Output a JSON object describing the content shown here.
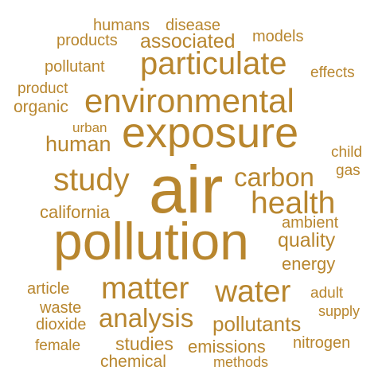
{
  "color": "#b8862e",
  "words": {
    "humans": "humans",
    "disease": "disease",
    "products": "products",
    "associated": "associated",
    "models": "models",
    "pollutant": "pollutant",
    "particulate": "particulate",
    "effects": "effects",
    "product": "product",
    "environmental": "environmental",
    "organic": "organic",
    "urban": "urban",
    "exposure": "exposure",
    "human": "human",
    "child": "child",
    "gas": "gas",
    "study": "study",
    "air": "air",
    "carbon": "carbon",
    "health": "health",
    "california": "california",
    "ambient": "ambient",
    "pollution": "pollution",
    "quality": "quality",
    "energy": "energy",
    "matter": "matter",
    "water": "water",
    "article": "article",
    "adult": "adult",
    "waste": "waste",
    "analysis": "analysis",
    "supply": "supply",
    "dioxide": "dioxide",
    "pollutants": "pollutants",
    "female": "female",
    "studies": "studies",
    "emissions": "emissions",
    "nitrogen": "nitrogen",
    "chemical": "chemical",
    "methods": "methods"
  }
}
